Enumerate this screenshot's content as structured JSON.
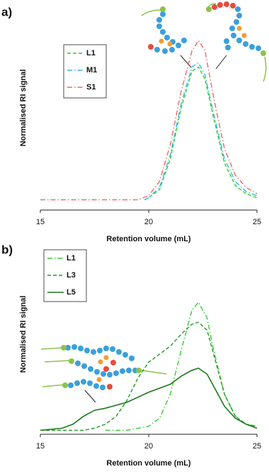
{
  "chart_data": [
    {
      "type": "line",
      "label": "a)",
      "xlabel": "Retention volume (mL)",
      "ylabel": "Normalised RI signal",
      "xlim": [
        15,
        25
      ],
      "xticks": [
        15,
        20,
        25
      ],
      "ylim": [
        0,
        1
      ],
      "grid": false,
      "series": [
        {
          "name": "L1",
          "color": "#33cc33",
          "dash": "dashed",
          "x": [
            19.8,
            20,
            20.5,
            21,
            21.5,
            22,
            22.3,
            22.6,
            23,
            23.5,
            24,
            24.5,
            25
          ],
          "values": [
            0.05,
            0.06,
            0.1,
            0.25,
            0.5,
            0.68,
            0.7,
            0.64,
            0.45,
            0.23,
            0.12,
            0.08,
            0.06
          ]
        },
        {
          "name": "M1",
          "color": "#33bbdd",
          "dash": "dashdot",
          "x": [
            19.8,
            20,
            20.5,
            21,
            21.5,
            22,
            22.3,
            22.6,
            23,
            23.5,
            24,
            24.5,
            25
          ],
          "values": [
            0.05,
            0.06,
            0.11,
            0.27,
            0.52,
            0.7,
            0.72,
            0.66,
            0.47,
            0.25,
            0.14,
            0.09,
            0.07
          ]
        },
        {
          "name": "S1",
          "color": "#ee6666",
          "dash": "dashdot",
          "x": [
            15,
            16,
            17,
            18,
            19,
            19.5,
            20,
            20.5,
            21,
            21.5,
            22,
            22.3,
            22.6,
            23,
            23.5,
            24,
            24.5,
            25
          ],
          "values": [
            0.05,
            0.05,
            0.05,
            0.05,
            0.05,
            0.05,
            0.07,
            0.14,
            0.32,
            0.58,
            0.78,
            0.83,
            0.78,
            0.55,
            0.3,
            0.17,
            0.11,
            0.08
          ]
        }
      ]
    },
    {
      "type": "line",
      "label": "b)",
      "xlabel": "Retention volume (mL)",
      "ylabel": "Normalised RI signal",
      "xlim": [
        15,
        25
      ],
      "xticks": [
        15,
        20,
        25
      ],
      "ylim": [
        0,
        1
      ],
      "grid": false,
      "series": [
        {
          "name": "L1",
          "color": "#33cc33",
          "dash": "dashdot",
          "x": [
            18,
            19,
            20,
            20.5,
            21,
            21.5,
            22,
            22.3,
            22.7,
            23,
            23.5,
            24,
            24.5,
            25
          ],
          "values": [
            0.02,
            0.02,
            0.04,
            0.08,
            0.2,
            0.42,
            0.62,
            0.66,
            0.58,
            0.42,
            0.2,
            0.09,
            0.05,
            0.04
          ]
        },
        {
          "name": "L3",
          "color": "#229922",
          "dash": "dashed",
          "x": [
            15,
            16,
            17,
            17.5,
            18,
            18.5,
            19,
            19.5,
            20,
            20.5,
            21,
            21.5,
            22,
            22.3,
            22.7,
            23,
            23.5,
            24,
            24.5,
            25
          ],
          "values": [
            0.02,
            0.02,
            0.02,
            0.03,
            0.05,
            0.09,
            0.17,
            0.28,
            0.36,
            0.4,
            0.44,
            0.5,
            0.55,
            0.56,
            0.52,
            0.4,
            0.2,
            0.09,
            0.05,
            0.04
          ]
        },
        {
          "name": "L5",
          "color": "#1a7a1a",
          "dash": "solid",
          "x": [
            15,
            16,
            16.5,
            17,
            17.5,
            18,
            19,
            20,
            21,
            21.5,
            22,
            22.3,
            22.7,
            23,
            23.5,
            24,
            24.5,
            25
          ],
          "values": [
            0.02,
            0.03,
            0.05,
            0.09,
            0.12,
            0.13,
            0.16,
            0.21,
            0.25,
            0.29,
            0.32,
            0.33,
            0.3,
            0.24,
            0.14,
            0.08,
            0.05,
            0.03
          ]
        }
      ]
    }
  ]
}
